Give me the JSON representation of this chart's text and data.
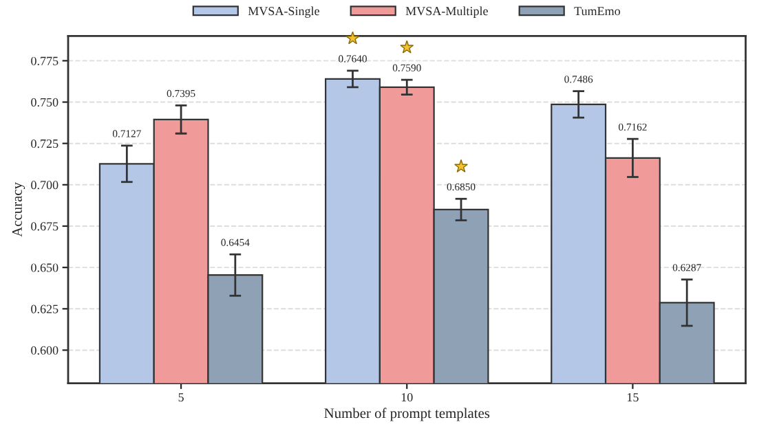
{
  "chart_data": {
    "type": "bar",
    "xlabel": "Number of prompt templates",
    "ylabel": "Accuracy",
    "categories": [
      "5",
      "10",
      "15"
    ],
    "series": [
      {
        "name": "MVSA-Single",
        "color": "#b4c7e7",
        "values": [
          0.7127,
          0.764,
          0.7486
        ],
        "errors": [
          0.011,
          0.005,
          0.008
        ],
        "value_labels": [
          "0.7127",
          "0.7640",
          "0.7486"
        ]
      },
      {
        "name": "MVSA-Multiple",
        "color": "#f09a9a",
        "values": [
          0.7395,
          0.759,
          0.7162
        ],
        "errors": [
          0.0085,
          0.0045,
          0.0115
        ],
        "value_labels": [
          "0.7395",
          "0.7590",
          "0.7162"
        ]
      },
      {
        "name": "TumEmo",
        "color": "#8ea1b5",
        "values": [
          0.6454,
          0.685,
          0.6287
        ],
        "errors": [
          0.0125,
          0.0065,
          0.014
        ],
        "value_labels": [
          "0.6454",
          "0.6850",
          "0.6287"
        ]
      }
    ],
    "ylim": [
      0.58,
      0.79
    ],
    "yticks": [
      {
        "value": 0.6,
        "label": "0.600"
      },
      {
        "value": 0.625,
        "label": "0.625"
      },
      {
        "value": 0.65,
        "label": "0.650"
      },
      {
        "value": 0.675,
        "label": "0.675"
      },
      {
        "value": 0.7,
        "label": "0.700"
      },
      {
        "value": 0.725,
        "label": "0.725"
      },
      {
        "value": 0.75,
        "label": "0.750"
      },
      {
        "value": 0.775,
        "label": "0.775"
      }
    ],
    "grid": "y",
    "legend": "top"
  }
}
